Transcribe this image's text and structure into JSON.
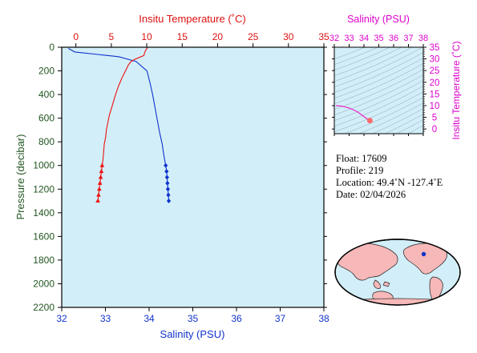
{
  "chart_data": [
    {
      "type": "line",
      "name": "profile",
      "xlabel_top": "Insitu Temperature (˚C)",
      "xlabel_bottom": "Salinity (PSU)",
      "ylabel": "Pressure (decibar)",
      "temp_range": [
        -2,
        35
      ],
      "temp_ticks": [
        0,
        5,
        10,
        15,
        20,
        25,
        30,
        35
      ],
      "sal_range": [
        32,
        38
      ],
      "sal_ticks": [
        32,
        33,
        34,
        35,
        36,
        37,
        38
      ],
      "pressure_range": [
        0,
        2200
      ],
      "pressure_ticks": [
        0,
        200,
        400,
        600,
        800,
        1000,
        1200,
        1400,
        1600,
        1800,
        2000,
        2200
      ],
      "temperature_color": "#ee1111",
      "salinity_color": "#1133cc",
      "background_color": "#d2eef8",
      "temperature_profile": [
        {
          "t": 10.1,
          "p": 5
        },
        {
          "t": 9.9,
          "p": 20
        },
        {
          "t": 9.7,
          "p": 45
        },
        {
          "t": 9.6,
          "p": 70
        },
        {
          "t": 9.0,
          "p": 85
        },
        {
          "t": 8.4,
          "p": 100
        },
        {
          "t": 7.8,
          "p": 120
        },
        {
          "t": 7.4,
          "p": 150
        },
        {
          "t": 7.0,
          "p": 200
        },
        {
          "t": 6.5,
          "p": 260
        },
        {
          "t": 6.0,
          "p": 330
        },
        {
          "t": 5.6,
          "p": 400
        },
        {
          "t": 5.3,
          "p": 460
        },
        {
          "t": 5.0,
          "p": 520
        },
        {
          "t": 4.7,
          "p": 580
        },
        {
          "t": 4.5,
          "p": 640
        },
        {
          "t": 4.3,
          "p": 700
        },
        {
          "t": 4.2,
          "p": 760
        },
        {
          "t": 4.0,
          "p": 820
        },
        {
          "t": 3.9,
          "p": 900
        },
        {
          "t": 3.8,
          "p": 960
        },
        {
          "t": 3.7,
          "p": 1000
        }
      ],
      "temperature_markers": [
        {
          "t": 3.7,
          "p": 1000
        },
        {
          "t": 3.6,
          "p": 1050
        },
        {
          "t": 3.5,
          "p": 1100
        },
        {
          "t": 3.4,
          "p": 1150
        },
        {
          "t": 3.3,
          "p": 1200
        },
        {
          "t": 3.2,
          "p": 1250
        },
        {
          "t": 3.1,
          "p": 1300
        }
      ],
      "salinity_profile": [
        {
          "s": 32.15,
          "p": 10
        },
        {
          "s": 32.3,
          "p": 40
        },
        {
          "s": 32.8,
          "p": 60
        },
        {
          "s": 33.3,
          "p": 80
        },
        {
          "s": 33.7,
          "p": 120
        },
        {
          "s": 33.95,
          "p": 200
        },
        {
          "s": 34.02,
          "p": 300
        },
        {
          "s": 34.08,
          "p": 400
        },
        {
          "s": 34.14,
          "p": 520
        },
        {
          "s": 34.19,
          "p": 620
        },
        {
          "s": 34.24,
          "p": 720
        },
        {
          "s": 34.3,
          "p": 820
        },
        {
          "s": 34.34,
          "p": 920
        },
        {
          "s": 34.38,
          "p": 1000
        }
      ],
      "salinity_markers": [
        {
          "s": 34.38,
          "p": 1000
        },
        {
          "s": 34.4,
          "p": 1050
        },
        {
          "s": 34.41,
          "p": 1100
        },
        {
          "s": 34.42,
          "p": 1150
        },
        {
          "s": 34.43,
          "p": 1200
        },
        {
          "s": 34.44,
          "p": 1250
        },
        {
          "s": 34.45,
          "p": 1300
        }
      ]
    },
    {
      "type": "line",
      "name": "ts_diagram",
      "xlabel": "Salinity (PSU)",
      "ylabel": "Insitu Temperature (˚C)",
      "sal_range": [
        32,
        38
      ],
      "sal_ticks": [
        32,
        33,
        34,
        35,
        36,
        37,
        38
      ],
      "temp_range": [
        -2,
        35
      ],
      "temp_ticks": [
        0,
        5,
        10,
        15,
        20,
        25,
        30,
        35
      ],
      "curve_color": "#ee22cc",
      "label_color": "#dd00cc",
      "ts_curve": [
        {
          "s": 32.1,
          "t": 10.0
        },
        {
          "s": 32.5,
          "t": 9.8
        },
        {
          "s": 33.0,
          "t": 9.0
        },
        {
          "s": 33.5,
          "t": 7.6
        },
        {
          "s": 33.9,
          "t": 5.8
        },
        {
          "s": 34.2,
          "t": 4.4
        },
        {
          "s": 34.4,
          "t": 3.6
        }
      ],
      "ts_marker": {
        "s": 34.4,
        "t": 3.6
      }
    }
  ],
  "float_info": {
    "float": "Float:  17609",
    "profile": "Profile:  219",
    "location": "Location:  49.4˚N  -127.4˚E",
    "date": "Date:  02/04/2026"
  },
  "map": {
    "ocean_color": "#d2eef8",
    "land_color": "#f6b8b8",
    "marker_color": "#1133cc",
    "marker_lat": 49.4,
    "marker_lon": -127.4
  }
}
